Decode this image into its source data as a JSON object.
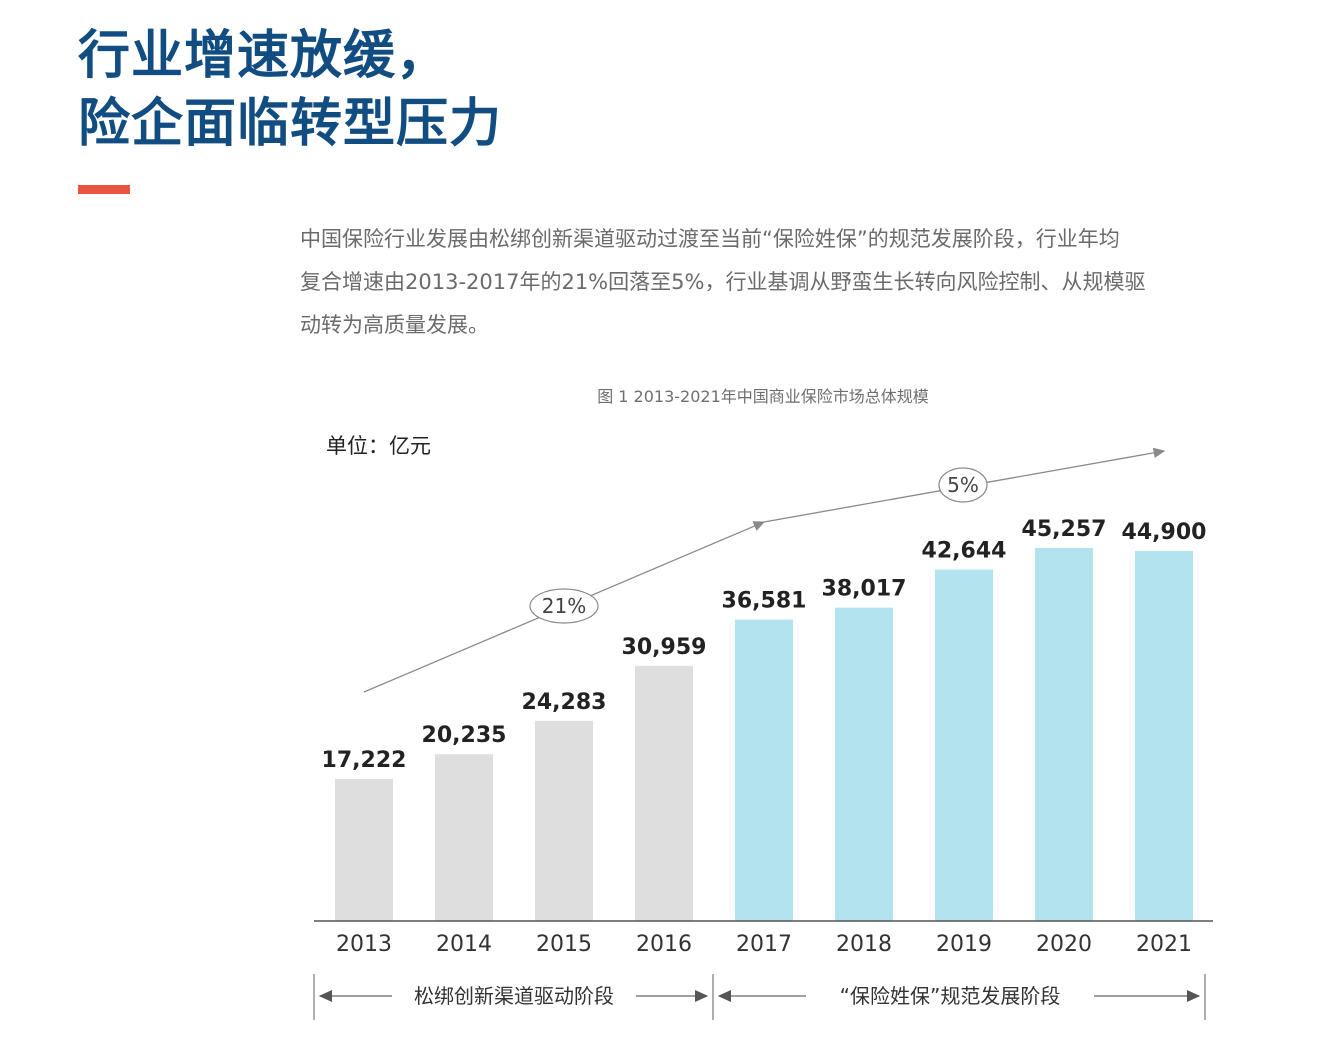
{
  "heading": {
    "line1": "行业增速放缓，",
    "line2": "险企面临转型压力"
  },
  "intro": {
    "line1": "中国保险行业发展由松绑创新渠道驱动过渡至当前“保险姓保”的规范发展阶段，行业年均",
    "line2": "复合增速由2013-2017年的21%回落至5%，行业基调从野蛮生长转向风险控制、从规模驱",
    "line3": "动转为高质量发展。"
  },
  "colors": {
    "heading": "#124d82",
    "accent": "#e8543f",
    "bar_early": "#dededf",
    "bar_late": "#b3e3ef",
    "axis": "#555555",
    "trend": "#8a8a8a"
  },
  "chart_data": {
    "type": "bar",
    "title": "图 1 2013-2021年中国商业保险市场总体规模",
    "unit_label": "单位：亿元",
    "categories": [
      "2013",
      "2014",
      "2015",
      "2016",
      "2017",
      "2018",
      "2019",
      "2020",
      "2021"
    ],
    "values": [
      17222,
      20235,
      24283,
      30959,
      36581,
      38017,
      42644,
      45257,
      44900
    ],
    "value_labels": [
      "17,222",
      "20,235",
      "24,283",
      "30,959",
      "36,581",
      "38,017",
      "42,644",
      "45,257",
      "44,900"
    ],
    "ylim": [
      0,
      51200
    ],
    "grid": false,
    "stages": [
      {
        "label": "松绑创新渠道驱动阶段",
        "from": "2013",
        "to": "2016",
        "color": "#dededf"
      },
      {
        "label": "“保险姓保”规范发展阶段",
        "from": "2017",
        "to": "2021",
        "color": "#b3e3ef"
      }
    ],
    "growth_annotations": [
      {
        "label": "21%",
        "period": "2013-2017"
      },
      {
        "label": "5%",
        "period": "2017-2021"
      }
    ]
  }
}
